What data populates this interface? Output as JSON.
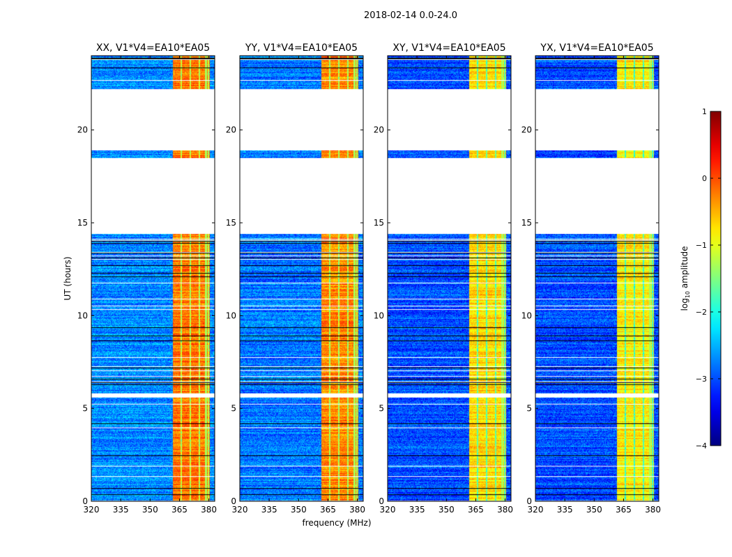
{
  "chart_data": {
    "type": "heatmap",
    "title": "2018-02-14 0.0-24.0",
    "xlabel": "frequency (MHz)",
    "ylabel": "UT (hours)",
    "xlim": [
      320,
      383
    ],
    "ylim": [
      0,
      24
    ],
    "xticks": [
      320,
      335,
      350,
      365,
      380
    ],
    "yticks": [
      0,
      5,
      10,
      15,
      20
    ],
    "panels": [
      {
        "title": "XX, V1*V4=EA10*EA05",
        "background_log_amp": -2.7,
        "band_log_amp": -0.2
      },
      {
        "title": "YY, V1*V4=EA10*EA05",
        "background_log_amp": -2.8,
        "band_log_amp": -0.3
      },
      {
        "title": "XY, V1*V4=EA10*EA05",
        "background_log_amp": -3.0,
        "band_log_amp": -0.7
      },
      {
        "title": "YX, V1*V4=EA10*EA05",
        "background_log_amp": -3.0,
        "band_log_amp": -0.8
      }
    ],
    "data_time_ranges_hours": [
      [
        0.05,
        5.6
      ],
      [
        5.8,
        14.4
      ],
      [
        18.5,
        18.9
      ],
      [
        22.2,
        24
      ]
    ],
    "high_amplitude_band_mhz": [
      361.5,
      380.5
    ],
    "colorbar": {
      "label": "log10 amplitude",
      "label_main": "log",
      "label_sub": "10",
      "label_rest": " amplitude",
      "range": [
        -4,
        1
      ],
      "ticks": [
        1,
        0,
        -1,
        -2,
        -3,
        -4
      ],
      "tick_labels": [
        "1",
        "0",
        "−1",
        "−2",
        "−3",
        "−4"
      ],
      "colormap": "jet"
    }
  }
}
